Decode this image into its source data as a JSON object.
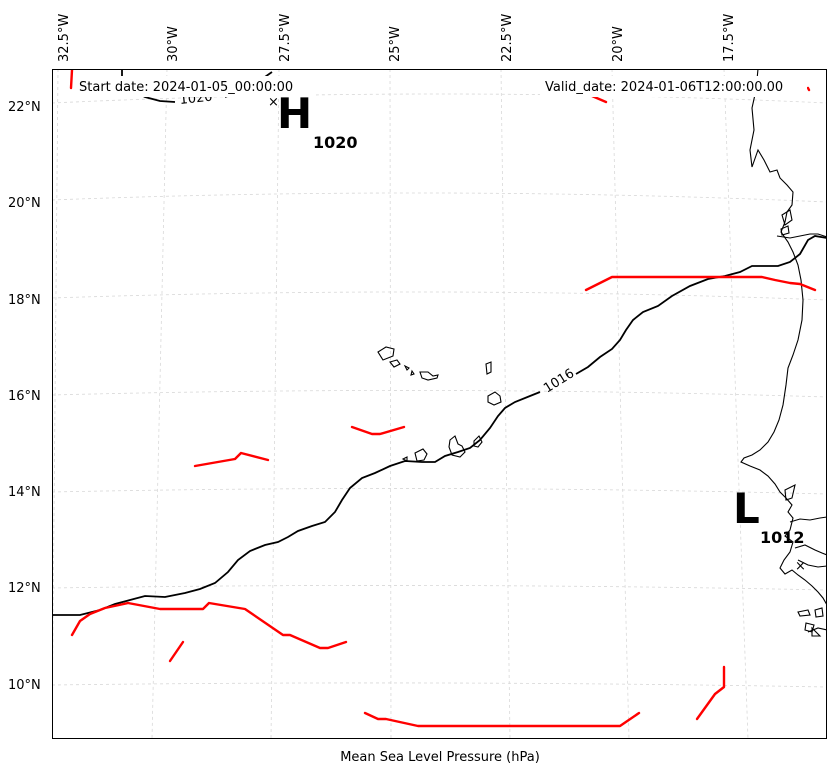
{
  "map": {
    "title": "",
    "start_label": "Start date: 2024-01-05_00:00:00",
    "valid_label": "Valid_date: 2024-01-06T12:00:00.00",
    "xlabel": "Mean Sea Level Pressure (hPa)",
    "lon_ticks": [
      "32.5°W",
      "30°W",
      "27.5°W",
      "25°W",
      "22.5°W",
      "20°W",
      "17.5°W"
    ],
    "lat_ticks": [
      "22°N",
      "20°N",
      "18°N",
      "16°N",
      "14°N",
      "12°N",
      "10°N"
    ],
    "high": {
      "letter": "H",
      "value": "1020",
      "contour_label": "1020"
    },
    "low": {
      "letter": "L",
      "value": "1012"
    },
    "isobar_label": "1016",
    "colors": {
      "isobar": "#000000",
      "front": "#ff0000",
      "grid": "#d8d8d8",
      "coast": "#000000"
    }
  }
}
